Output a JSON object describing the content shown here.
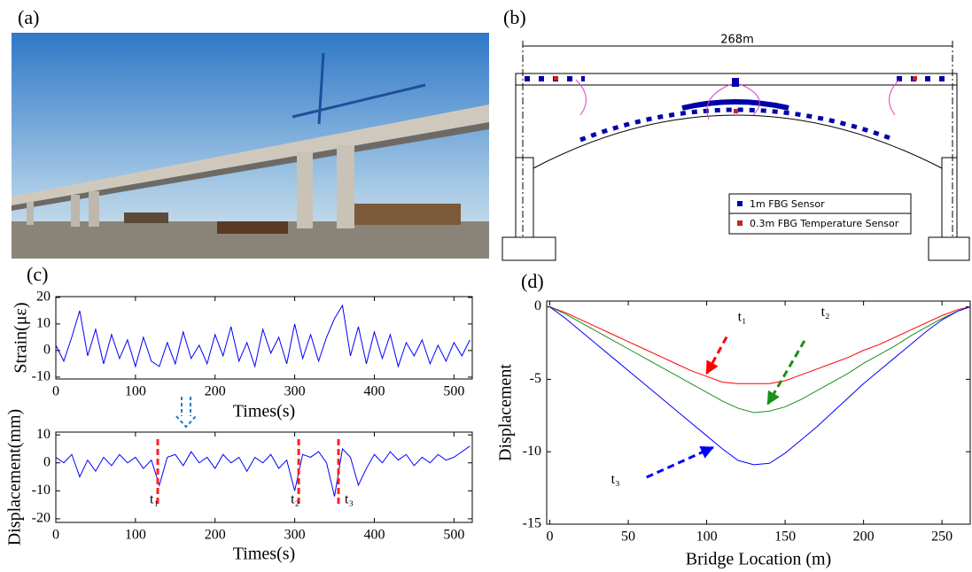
{
  "photo": {
    "label": "(a)"
  },
  "diagram": {
    "label": "(b)",
    "span": "268m",
    "legend": [
      "1m FBG Sensor",
      "0.3m FBG Temperature Sensor"
    ]
  },
  "chart_data": [
    {
      "type": "line",
      "label": "(c)",
      "y_label": "Strain(με)",
      "x_label": "Times(s)",
      "xlim": [
        0,
        523
      ],
      "ylim": [
        -10.7,
        20.3
      ],
      "xticks": [
        0,
        100,
        200,
        300,
        400,
        500
      ],
      "yticks": [
        -10,
        0,
        10,
        20
      ],
      "x": [
        0,
        10,
        20,
        30,
        40,
        50,
        60,
        70,
        80,
        90,
        100,
        110,
        120,
        130,
        140,
        150,
        160,
        170,
        180,
        190,
        200,
        210,
        220,
        230,
        240,
        250,
        260,
        270,
        280,
        290,
        300,
        310,
        320,
        330,
        340,
        350,
        360,
        370,
        380,
        390,
        400,
        410,
        420,
        430,
        440,
        450,
        460,
        470,
        480,
        490,
        500,
        510,
        520
      ],
      "series": [
        {
          "color": "#0000ff",
          "values": [
            2,
            -4,
            5,
            15,
            -2,
            8,
            -5,
            6,
            -3,
            4,
            -6,
            5,
            -4,
            -6,
            3,
            -5,
            7,
            -3,
            2,
            -5,
            6,
            -2,
            9,
            -4,
            3,
            -6,
            8,
            -1,
            5,
            -5,
            10,
            -3,
            6,
            -4,
            5,
            12,
            17,
            -2,
            9,
            -5,
            7,
            -3,
            6,
            -6,
            3,
            -2,
            4,
            -5,
            2,
            -4,
            3,
            -2,
            4
          ]
        }
      ]
    },
    {
      "type": "line",
      "y_label": "Displacement(mm)",
      "x_label": "Times(s)",
      "xlim": [
        0,
        523
      ],
      "ylim": [
        -21.3,
        11
      ],
      "xticks": [
        0,
        100,
        200,
        300,
        400,
        500
      ],
      "yticks": [
        -20,
        -10,
        0,
        10
      ],
      "x": [
        0,
        10,
        20,
        30,
        40,
        50,
        60,
        70,
        80,
        90,
        100,
        110,
        120,
        130,
        140,
        150,
        160,
        170,
        180,
        190,
        200,
        210,
        220,
        230,
        240,
        250,
        260,
        270,
        280,
        290,
        300,
        310,
        320,
        330,
        340,
        350,
        360,
        370,
        380,
        390,
        400,
        410,
        420,
        430,
        440,
        450,
        460,
        470,
        480,
        490,
        500,
        510,
        520
      ],
      "series": [
        {
          "color": "#0000ff",
          "values": [
            2,
            0,
            3,
            -5,
            1,
            -3,
            2,
            -1,
            3,
            0,
            2,
            -2,
            1,
            -8,
            2,
            3,
            -1,
            4,
            0,
            2,
            -2,
            3,
            0,
            2,
            -3,
            2,
            0,
            3,
            -2,
            1,
            -10,
            3,
            2,
            4,
            0,
            -12,
            5,
            2,
            -8,
            -2,
            3,
            0,
            4,
            1,
            3,
            -1,
            2,
            0,
            3,
            1,
            2,
            4,
            6
          ]
        }
      ],
      "annotations": [
        {
          "text": "t₁",
          "x": 128
        },
        {
          "text": "t₂",
          "x": 305
        },
        {
          "text": "t₃",
          "x": 355
        }
      ]
    },
    {
      "type": "line",
      "label": "(d)",
      "y_label": "Displacement",
      "x_label": "Bridge Location (m)",
      "xlim": [
        -2,
        268
      ],
      "ylim": [
        -15,
        0.4
      ],
      "xticks": [
        0,
        50,
        100,
        150,
        200,
        250
      ],
      "yticks": [
        -15,
        -10,
        -5,
        0
      ],
      "x": [
        0,
        10,
        20,
        30,
        40,
        50,
        60,
        70,
        80,
        90,
        100,
        110,
        120,
        130,
        140,
        150,
        160,
        170,
        180,
        190,
        200,
        210,
        220,
        230,
        240,
        250,
        260,
        268
      ],
      "series": [
        {
          "name": "t₁",
          "color": "#ff0000",
          "arrow_tip": [
            100,
            -4.6
          ],
          "values": [
            0,
            -0.4,
            -0.9,
            -1.4,
            -1.9,
            -2.4,
            -2.9,
            -3.4,
            -3.9,
            -4.4,
            -4.8,
            -5.2,
            -5.3,
            -5.3,
            -5.3,
            -5.1,
            -4.7,
            -4.3,
            -3.9,
            -3.5,
            -3.0,
            -2.6,
            -2.1,
            -1.6,
            -1.1,
            -0.6,
            -0.2,
            0
          ]
        },
        {
          "name": "t₂",
          "color": "#1a8f1a",
          "arrow_tip": [
            139,
            -6.7
          ],
          "values": [
            0,
            -0.5,
            -1.1,
            -1.7,
            -2.3,
            -2.9,
            -3.5,
            -4.1,
            -4.7,
            -5.3,
            -5.9,
            -6.5,
            -7.0,
            -7.3,
            -7.2,
            -6.9,
            -6.4,
            -5.8,
            -5.2,
            -4.6,
            -3.9,
            -3.3,
            -2.7,
            -2.0,
            -1.4,
            -0.8,
            -0.3,
            0
          ]
        },
        {
          "name": "t₃",
          "color": "#0000ff",
          "arrow_tip": [
            104,
            -9.7
          ],
          "values": [
            0,
            -0.8,
            -1.7,
            -2.6,
            -3.5,
            -4.4,
            -5.3,
            -6.2,
            -7.1,
            -8.0,
            -8.9,
            -9.8,
            -10.6,
            -10.9,
            -10.8,
            -10.1,
            -9.2,
            -8.3,
            -7.3,
            -6.3,
            -5.3,
            -4.4,
            -3.5,
            -2.6,
            -1.7,
            -0.9,
            -0.3,
            0
          ]
        }
      ]
    }
  ]
}
